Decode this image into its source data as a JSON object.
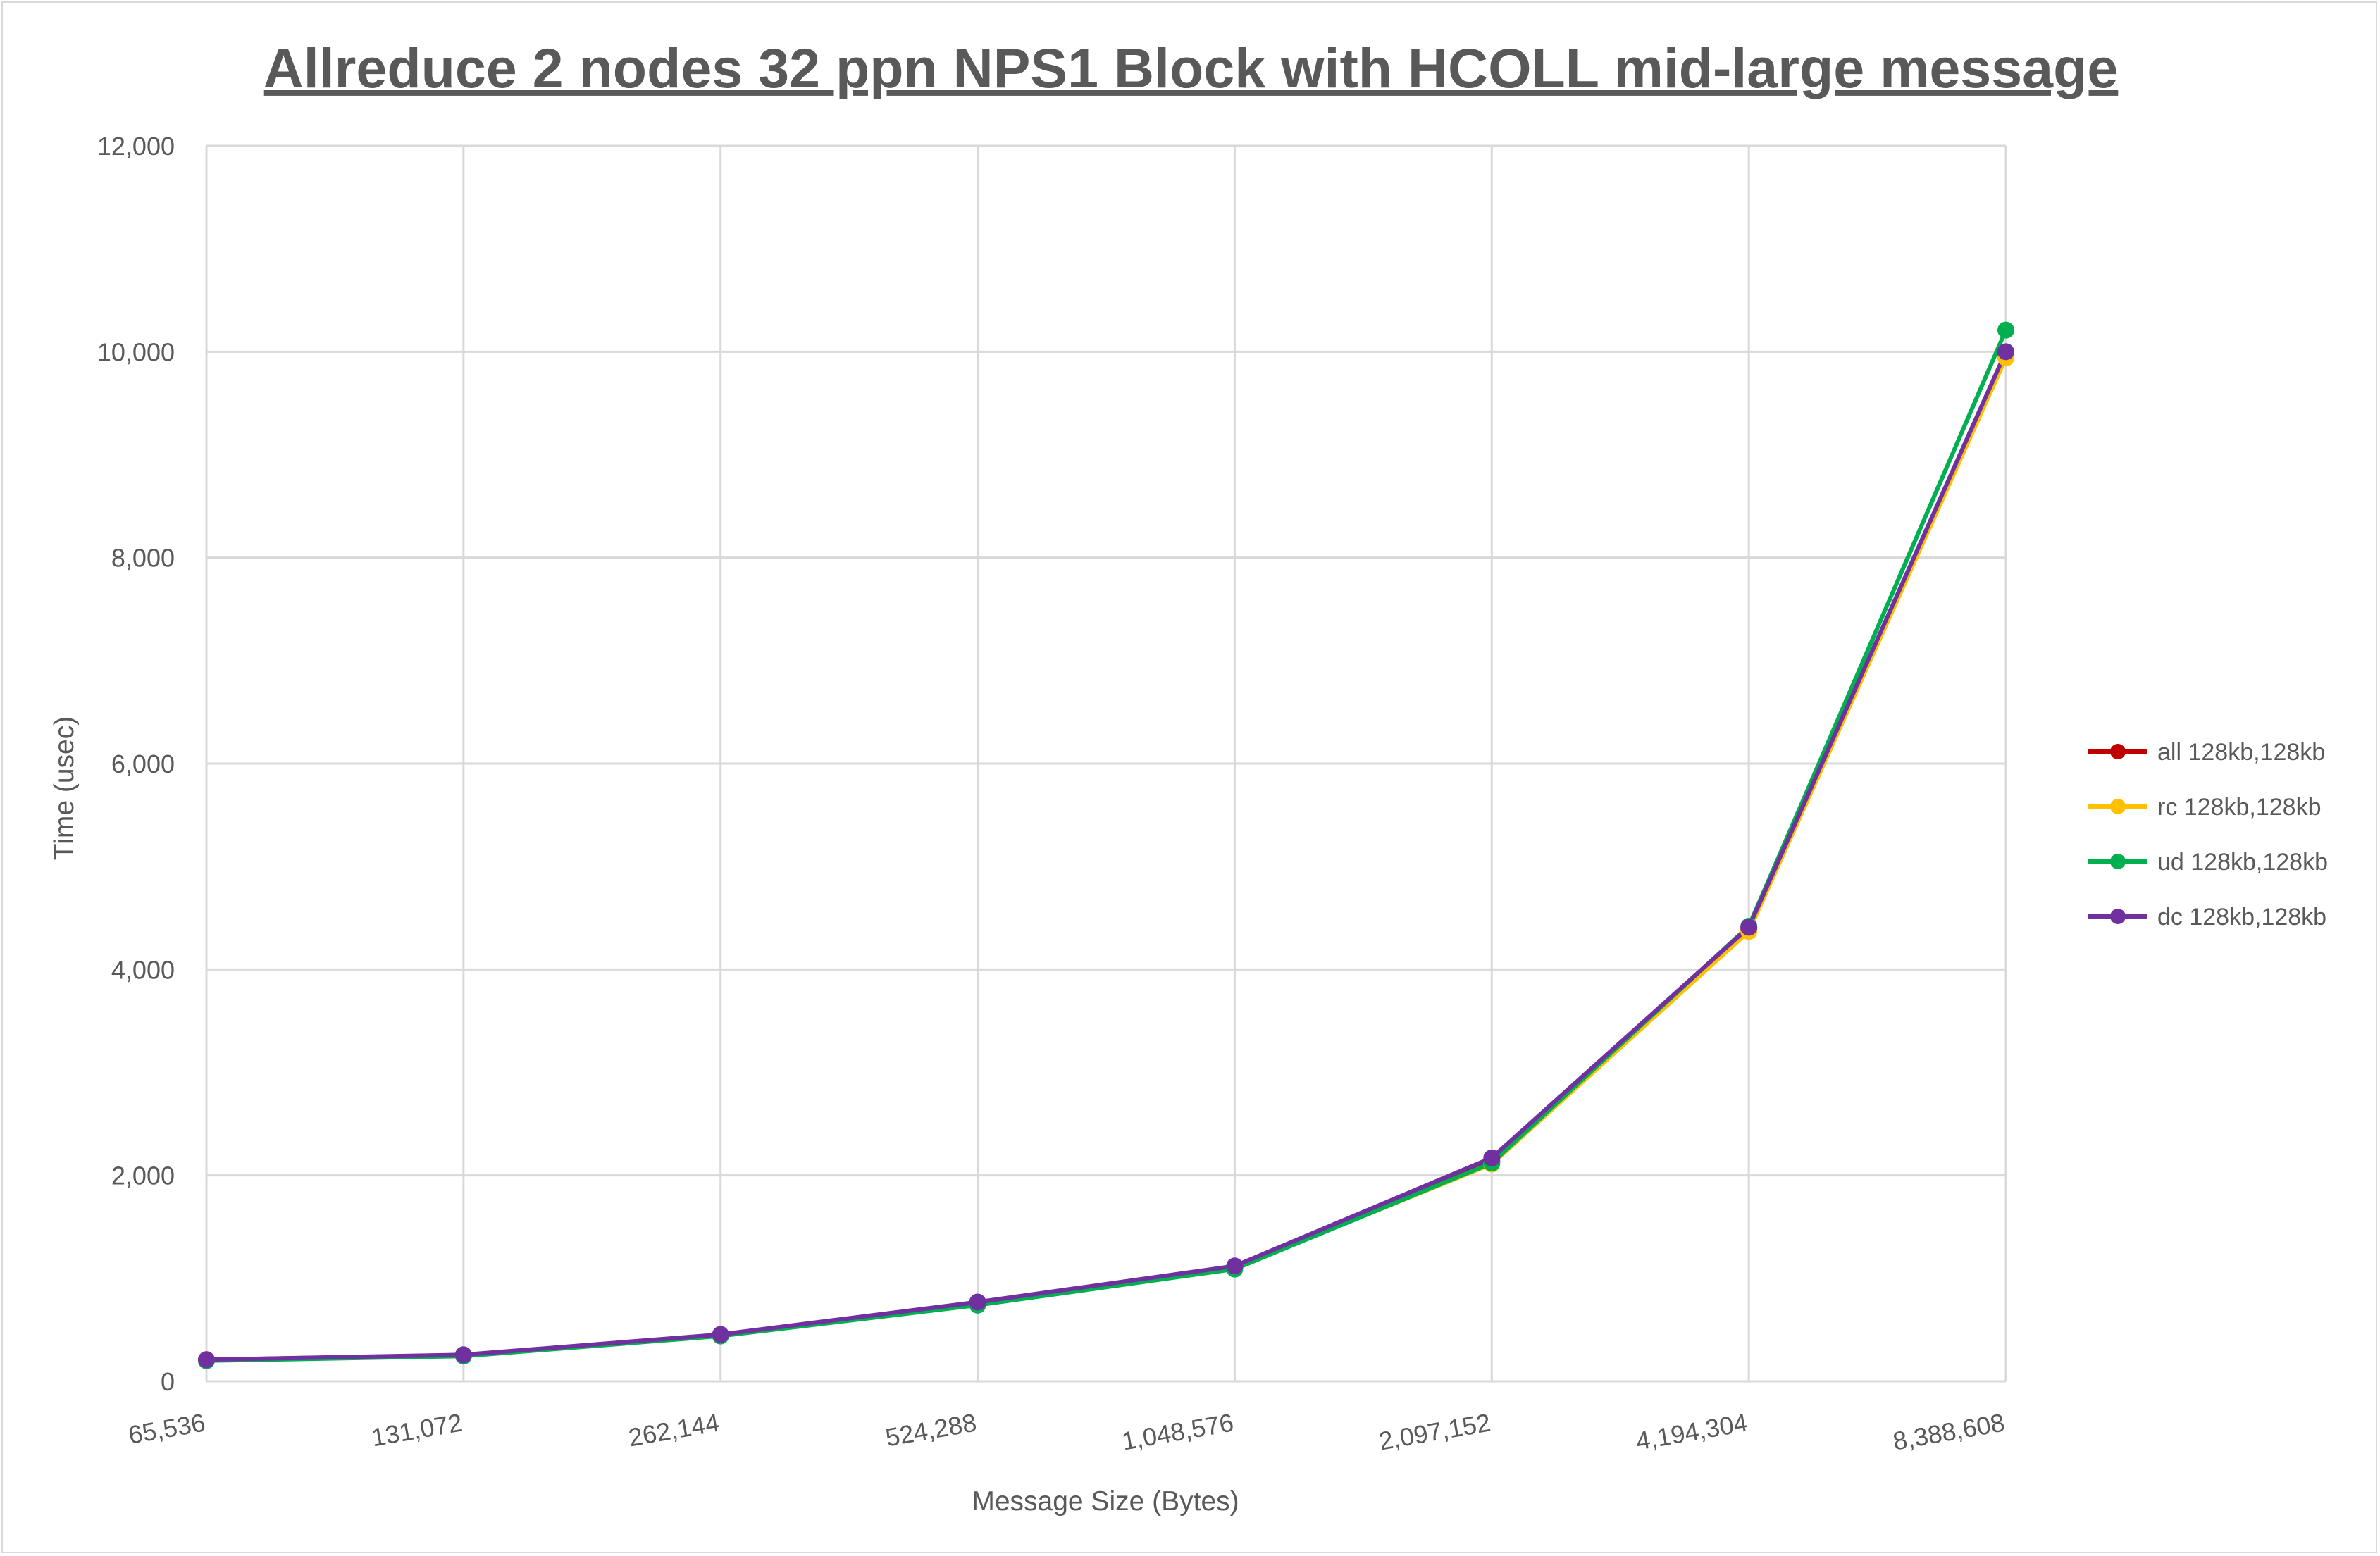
{
  "chart_data": {
    "type": "line",
    "title": "Allreduce 2 nodes 32 ppn NPS1 Block with HCOLL mid-large message",
    "xlabel": "Message Size (Bytes)",
    "ylabel": "Time (usec)",
    "categories": [
      "65,536",
      "131,072",
      "262,144",
      "524,288",
      "1,048,576",
      "2,097,152",
      "4,194,304",
      "8,388,608"
    ],
    "ylim": [
      0,
      12000
    ],
    "yticks": [
      "0",
      "2,000",
      "4,000",
      "6,000",
      "8,000",
      "10,000",
      "12,000"
    ],
    "ytick_values": [
      0,
      2000,
      4000,
      6000,
      8000,
      10000,
      12000
    ],
    "grid": true,
    "legend_position": "right",
    "series": [
      {
        "name": "all 128kb,128kb",
        "color": "#c00000",
        "values": [
          210,
          255,
          450,
          760,
          1110,
          2140,
          4390,
          9960
        ]
      },
      {
        "name": "rc 128kb,128kb",
        "color": "#ffc000",
        "values": [
          205,
          250,
          445,
          750,
          1100,
          2110,
          4370,
          9940
        ]
      },
      {
        "name": "ud 128kb,128kb",
        "color": "#00b050",
        "values": [
          200,
          245,
          440,
          740,
          1090,
          2120,
          4420,
          10210
        ]
      },
      {
        "name": "dc 128kb,128kb",
        "color": "#7030a0",
        "values": [
          210,
          258,
          455,
          770,
          1120,
          2170,
          4410,
          10000
        ]
      }
    ]
  }
}
